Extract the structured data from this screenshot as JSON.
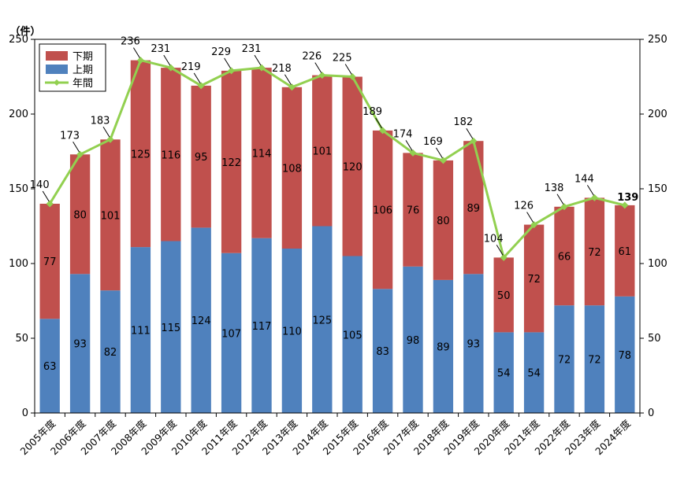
{
  "chart_data": {
    "type": "bar",
    "stacked": true,
    "unit_label": "（件）",
    "categories": [
      "2005年度",
      "2006年度",
      "2007年度",
      "2008年度",
      "2009年度",
      "2010年度",
      "2011年度",
      "2012年度",
      "2013年度",
      "2014年度",
      "2015年度",
      "2016年度",
      "2017年度",
      "2018年度",
      "2019年度",
      "2020年度",
      "2021年度",
      "2022年度",
      "2023年度",
      "2024年度"
    ],
    "series": [
      {
        "name": "上期",
        "color": "#4f81bd",
        "values": [
          63,
          93,
          82,
          111,
          115,
          124,
          107,
          117,
          110,
          125,
          105,
          83,
          98,
          89,
          93,
          54,
          54,
          72,
          72,
          78
        ]
      },
      {
        "name": "下期",
        "color": "#c0504d",
        "values": [
          77,
          80,
          101,
          125,
          116,
          95,
          122,
          114,
          108,
          101,
          120,
          106,
          76,
          80,
          89,
          50,
          72,
          66,
          72,
          61
        ]
      },
      {
        "name": "年間",
        "type": "line",
        "color": "#92d050",
        "values": [
          140,
          173,
          183,
          236,
          231,
          219,
          229,
          231,
          218,
          226,
          225,
          189,
          174,
          169,
          182,
          104,
          126,
          138,
          144,
          139
        ]
      }
    ],
    "legend_order": [
      "下期",
      "上期",
      "年間"
    ],
    "ylim": [
      0,
      250
    ],
    "yticks": [
      0,
      50,
      100,
      150,
      200,
      250
    ],
    "y2lim": [
      0,
      250
    ],
    "y2ticks": [
      0,
      50,
      100,
      150,
      200,
      250
    ],
    "highlight_last_total": true,
    "legend_position": "top-left"
  }
}
